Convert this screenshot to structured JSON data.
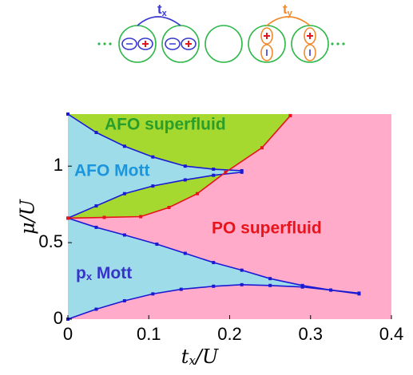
{
  "diagram": {
    "hop_x": [
      "t",
      "x"
    ],
    "hop_y": [
      "t",
      "y"
    ]
  },
  "chart_data": {
    "type": "phase-diagram",
    "x_label": [
      "t",
      "x",
      "/U"
    ],
    "y_label": "μ/U",
    "xlim": [
      0,
      0.4
    ],
    "ylim": [
      0,
      1.34
    ],
    "xticks": [
      0,
      0.1,
      0.2,
      0.3,
      0.4
    ],
    "yticks": [
      0,
      0.5,
      1
    ],
    "fill_colors": {
      "mott": "#9fdcea",
      "afo_superfluid": "#a6d930",
      "po_superfluid": "#ffabc9"
    },
    "series": [
      {
        "color": "#1a1ad4",
        "x": [
          0,
          0.035,
          0.07,
          0.11,
          0.145,
          0.18,
          0.215,
          0.25,
          0.29,
          0.325,
          0.36
        ],
        "values": [
          0.66,
          0.6,
          0.55,
          0.49,
          0.43,
          0.37,
          0.32,
          0.265,
          0.22,
          0.19,
          0.165
        ]
      },
      {
        "color": "#1a1ad4",
        "x": [
          0,
          0.035,
          0.07,
          0.105,
          0.14,
          0.18,
          0.215,
          0.25,
          0.29,
          0.325,
          0.36
        ],
        "values": [
          0,
          0.065,
          0.12,
          0.165,
          0.195,
          0.215,
          0.225,
          0.22,
          0.21,
          0.19,
          0.17
        ]
      },
      {
        "color": "#1a1ad4",
        "x": [
          0,
          0.035,
          0.07,
          0.105,
          0.145,
          0.18,
          0.215
        ],
        "values": [
          1.34,
          1.22,
          1.13,
          1.06,
          1.0,
          0.98,
          0.97
        ]
      },
      {
        "color": "#1a1ad4",
        "x": [
          0,
          0.035,
          0.07,
          0.105,
          0.145,
          0.18,
          0.215
        ],
        "values": [
          0.66,
          0.74,
          0.82,
          0.87,
          0.91,
          0.94,
          0.96
        ]
      },
      {
        "color": "#e8141c",
        "x": [
          0,
          0.045,
          0.09,
          0.125,
          0.16,
          0.195,
          0.24,
          0.275
        ],
        "values": [
          0.66,
          0.665,
          0.67,
          0.73,
          0.82,
          0.96,
          1.12,
          1.33
        ]
      }
    ],
    "annotations": [
      {
        "text": "AFO superfluid",
        "color": "#2a9e2a"
      },
      {
        "text": "AFO Mott",
        "color": "#1b95dc"
      },
      {
        "text": "PO superfluid",
        "color": "#e8141c"
      },
      {
        "text": [
          "p",
          "x",
          " Mott"
        ],
        "color": "#3535c8"
      }
    ]
  }
}
